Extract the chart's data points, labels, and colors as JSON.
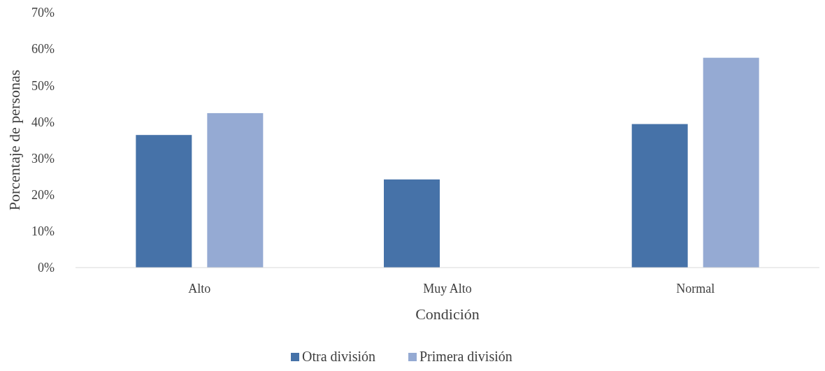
{
  "chart_data": {
    "type": "bar",
    "xlabel": "Condición",
    "ylabel": "Porcentaje de personas",
    "categories": [
      "Alto",
      "Muy Alto",
      "Normal"
    ],
    "series": [
      {
        "name": "Otra división",
        "color": "#4672a8",
        "values": [
          36.4,
          24.2,
          39.4
        ]
      },
      {
        "name": "Primera división",
        "color": "#95aad3",
        "values": [
          42.4,
          0,
          57.6
        ]
      }
    ],
    "ylim": [
      0,
      70
    ],
    "yticks": [
      {
        "value": 0,
        "label": "0%"
      },
      {
        "value": 10,
        "label": "10%"
      },
      {
        "value": 20,
        "label": "20%"
      },
      {
        "value": 30,
        "label": "30%"
      },
      {
        "value": 40,
        "label": "40%"
      },
      {
        "value": 50,
        "label": "50%"
      },
      {
        "value": 60,
        "label": "60%"
      },
      {
        "value": 70,
        "label": "70%"
      }
    ],
    "grid": false,
    "legend": "bottom"
  }
}
